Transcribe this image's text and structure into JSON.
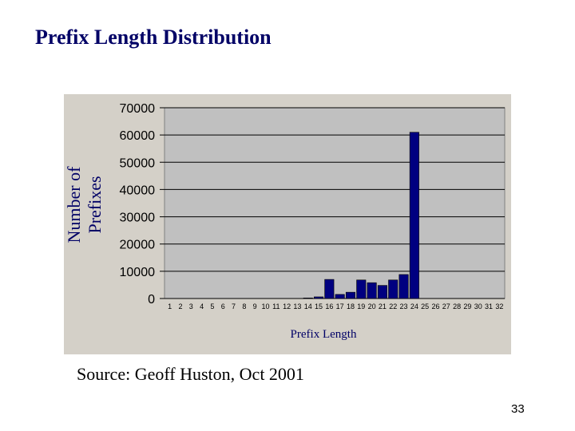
{
  "slide": {
    "title": "Prefix Length Distribution",
    "source": "Source: Geoff Huston, Oct 2001",
    "page_number": "33"
  },
  "colors": {
    "title": "#000066",
    "bar_fill": "#000080",
    "plot_bg": "#c0c0c0",
    "outer_bg": "#d4d0c8",
    "grid": "#000000"
  },
  "chart_data": {
    "type": "bar",
    "title": "",
    "xlabel": "Prefix Length",
    "ylabel": "Number of Prefixes",
    "ylim": [
      0,
      70000
    ],
    "yticks": [
      0,
      10000,
      20000,
      30000,
      40000,
      50000,
      60000,
      70000
    ],
    "grid": true,
    "categories": [
      "1",
      "2",
      "3",
      "4",
      "5",
      "6",
      "7",
      "8",
      "9",
      "10",
      "11",
      "12",
      "13",
      "14",
      "15",
      "16",
      "17",
      "18",
      "19",
      "20",
      "21",
      "22",
      "23",
      "24",
      "25",
      "26",
      "27",
      "28",
      "29",
      "30",
      "31",
      "32"
    ],
    "values": [
      0,
      0,
      0,
      0,
      0,
      0,
      0,
      0,
      0,
      0,
      0,
      0,
      0,
      200,
      600,
      7000,
      1500,
      2300,
      6800,
      5800,
      4800,
      6800,
      8800,
      61000,
      0,
      0,
      0,
      0,
      0,
      0,
      0,
      0
    ]
  }
}
